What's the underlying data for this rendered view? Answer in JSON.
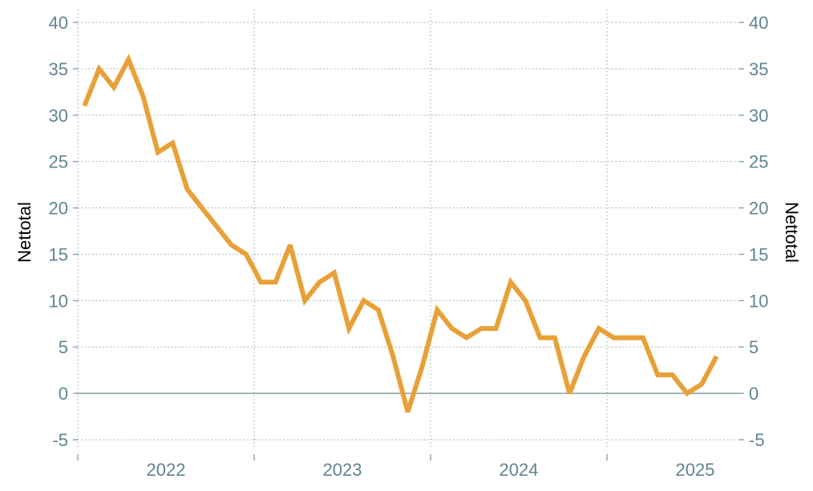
{
  "chart_data": {
    "type": "line",
    "ylabel_left": "Nettotal",
    "ylabel_right": "Nettotal",
    "ylim": [
      -5,
      40
    ],
    "yticks": [
      -5,
      0,
      5,
      10,
      15,
      20,
      25,
      30,
      35,
      40
    ],
    "xtick_labels": [
      "2022",
      "2023",
      "2024",
      "2025"
    ],
    "grid": true,
    "line_color": "#E8A038",
    "x": [
      "2022-01",
      "2022-02",
      "2022-03",
      "2022-04",
      "2022-05",
      "2022-06",
      "2022-07",
      "2022-08",
      "2022-09",
      "2022-10",
      "2022-11",
      "2022-12",
      "2023-01",
      "2023-02",
      "2023-03",
      "2023-04",
      "2023-05",
      "2023-06",
      "2023-07",
      "2023-08",
      "2023-09",
      "2023-10",
      "2023-11",
      "2023-12",
      "2024-01",
      "2024-02",
      "2024-03",
      "2024-04",
      "2024-05",
      "2024-06",
      "2024-07",
      "2024-08",
      "2024-09",
      "2024-10",
      "2024-11",
      "2024-12",
      "2025-01",
      "2025-02",
      "2025-03",
      "2025-04",
      "2025-05",
      "2025-06",
      "2025-07",
      "2025-08"
    ],
    "values": [
      31,
      35,
      33,
      36,
      32,
      26,
      27,
      22,
      20,
      18,
      16,
      15,
      12,
      12,
      16,
      10,
      12,
      13,
      7,
      10,
      9,
      4,
      -2,
      3,
      9,
      7,
      6,
      7,
      7,
      12,
      10,
      6,
      6,
      0,
      4,
      7,
      6,
      6,
      6,
      2,
      2,
      0,
      1,
      4
    ]
  }
}
